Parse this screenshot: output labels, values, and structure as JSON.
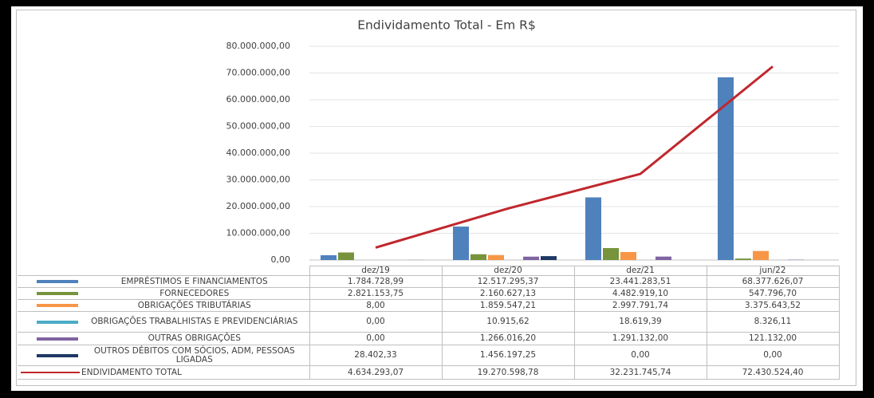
{
  "chart_data": {
    "type": "bar",
    "title": "Endividamento Total - Em R$",
    "categories": [
      "dez/19",
      "dez/20",
      "dez/21",
      "jun/22"
    ],
    "ylim": [
      0,
      80000000
    ],
    "yticks": [
      {
        "value": 0,
        "label": "0,00"
      },
      {
        "value": 10000000,
        "label": "10.000.000,00"
      },
      {
        "value": 20000000,
        "label": "20.000.000,00"
      },
      {
        "value": 30000000,
        "label": "30.000.000,00"
      },
      {
        "value": 40000000,
        "label": "40.000.000,00"
      },
      {
        "value": 50000000,
        "label": "50.000.000,00"
      },
      {
        "value": 60000000,
        "label": "60.000.000,00"
      },
      {
        "value": 70000000,
        "label": "70.000.000,00"
      },
      {
        "value": 80000000,
        "label": "80.000.000,00"
      }
    ],
    "grid": true,
    "series": [
      {
        "name": "EMPRÉSTIMOS E FINANCIAMENTOS",
        "color": "#4f81bd",
        "values": [
          1784728.99,
          12517295.37,
          23441283.51,
          68377626.07
        ],
        "value_labels": [
          "1.784.728,99",
          "12.517.295,37",
          "23.441.283,51",
          "68.377.626,07"
        ]
      },
      {
        "name": "FORNECEDORES",
        "color": "#77933c",
        "values": [
          2821153.75,
          2160627.13,
          4482919.1,
          547796.7
        ],
        "value_labels": [
          "2.821.153,75",
          "2.160.627,13",
          "4.482.919,10",
          "547.796,70"
        ]
      },
      {
        "name": "OBRIGAÇÕES TRIBUTÁRIAS",
        "color": "#f79646",
        "values": [
          8.0,
          1859547.21,
          2997791.74,
          3375643.52
        ],
        "value_labels": [
          "8,00",
          "1.859.547,21",
          "2.997.791,74",
          "3.375.643,52"
        ]
      },
      {
        "name": "OBRIGAÇÕES TRABALHISTAS E PREVIDENCIÁRIAS",
        "color": "#4bacc6",
        "values": [
          0,
          10915.62,
          18619.39,
          8326.11
        ],
        "value_labels": [
          "0,00",
          "10.915,62",
          "18.619,39",
          "8.326,11"
        ]
      },
      {
        "name": "OUTRAS OBRIGAÇÕES",
        "color": "#8064a2",
        "values": [
          0,
          1266016.2,
          1291132.0,
          121132.0
        ],
        "value_labels": [
          "0,00",
          "1.266.016,20",
          "1.291.132,00",
          "121.132,00"
        ]
      },
      {
        "name": "OUTROS DÉBITOS COM SÓCIOS, ADM, PESSOAS LIGADAS",
        "color": "#1f3864",
        "values": [
          28402.33,
          1456197.25,
          0,
          0
        ],
        "value_labels": [
          "28.402,33",
          "1.456.197,25",
          "0,00",
          "0,00"
        ]
      },
      {
        "name": "ENDIVIDAMENTO TOTAL",
        "type": "line",
        "color": "#c0272d",
        "values": [
          4634293.07,
          19270598.78,
          32231745.74,
          72430524.4
        ],
        "value_labels": [
          "4.634.293,07",
          "19.270.598,78",
          "32.231.745,74",
          "72.430.524,40"
        ]
      }
    ]
  }
}
